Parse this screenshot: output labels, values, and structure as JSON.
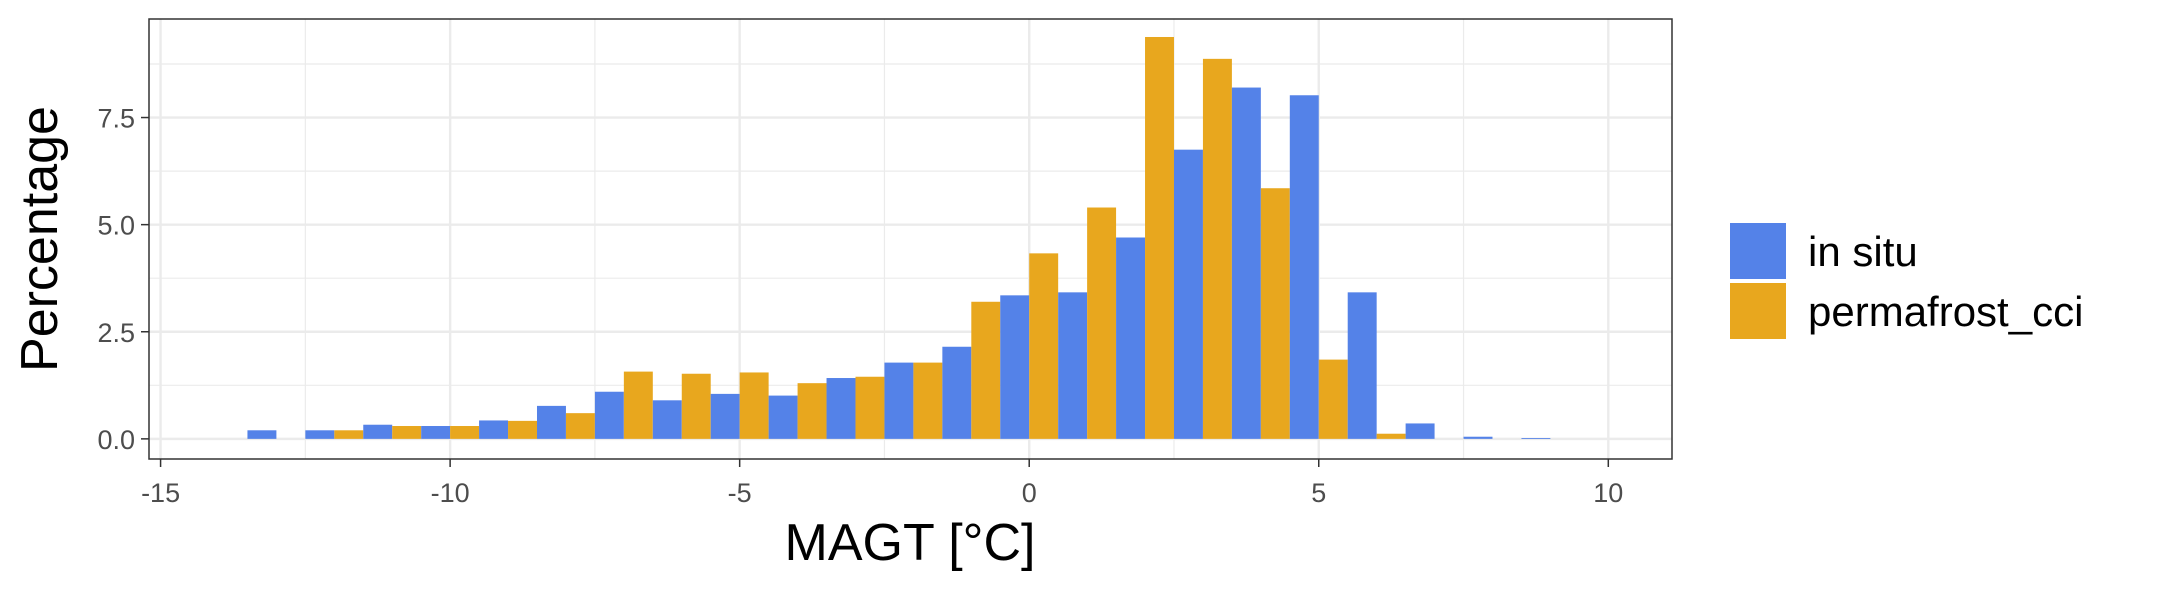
{
  "chart_data": {
    "type": "bar",
    "title": "",
    "xlabel": "MAGT [°C]",
    "ylabel": "Percentage",
    "xlim": [
      -15.2,
      11.1
    ],
    "ylim": [
      -0.47,
      9.8
    ],
    "x_ticks": [
      -15,
      -10,
      -5,
      0,
      5,
      10
    ],
    "x_tick_labels": [
      "-15",
      "-10",
      "-5",
      "0",
      "5",
      "10"
    ],
    "y_ticks": [
      0.0,
      2.5,
      5.0,
      7.5
    ],
    "y_tick_labels": [
      "0.0",
      "2.5",
      "5.0",
      "7.5"
    ],
    "grid": true,
    "legend_position": "right",
    "bin_width": 1.0,
    "x": [
      -13,
      -12,
      -11,
      -10,
      -9,
      -8,
      -7,
      -6,
      -5,
      -4,
      -3,
      -2,
      -1,
      0,
      1,
      2,
      3,
      4,
      5,
      6,
      7,
      8,
      9
    ],
    "series": [
      {
        "name": "in situ",
        "color": "#5482e8",
        "values": [
          0.2,
          0.2,
          0.33,
          0.3,
          0.43,
          0.77,
          1.1,
          0.9,
          1.05,
          1.01,
          1.42,
          1.78,
          2.15,
          3.35,
          3.42,
          4.7,
          6.75,
          8.2,
          8.02,
          3.42,
          0.36,
          0.05,
          0.02
        ]
      },
      {
        "name": "permafrost_cci",
        "color": "#e8a71e",
        "values": [
          0.0,
          0.2,
          0.3,
          0.3,
          0.42,
          0.6,
          1.57,
          1.52,
          1.55,
          1.3,
          1.45,
          1.78,
          3.2,
          4.33,
          5.4,
          9.38,
          8.87,
          5.85,
          1.85,
          0.12,
          0.0,
          0.0,
          0.0
        ]
      }
    ]
  }
}
